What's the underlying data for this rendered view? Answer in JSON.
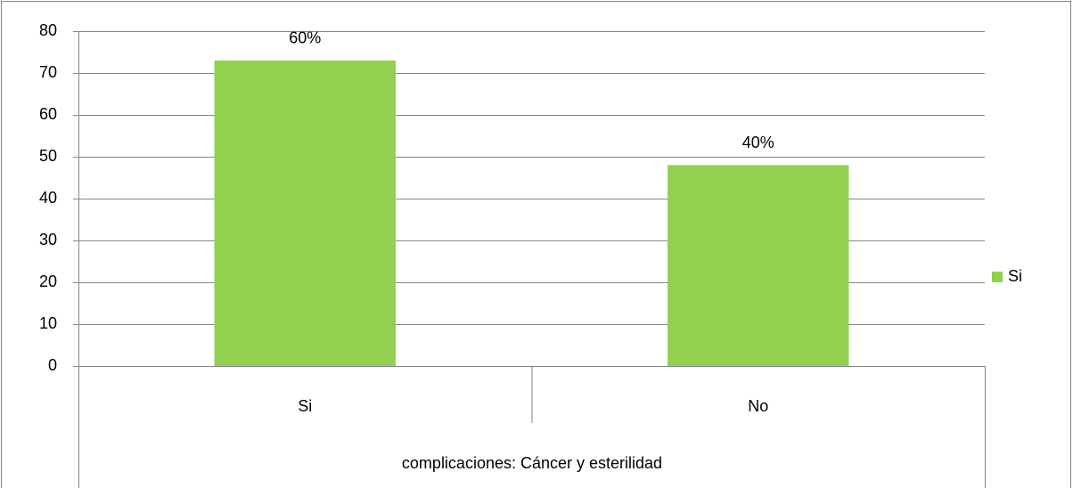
{
  "chart_data": {
    "type": "bar",
    "categories": [
      "Si",
      "No"
    ],
    "series": [
      {
        "name": "Si",
        "color": "#92d050",
        "values": [
          73,
          48
        ]
      }
    ],
    "annotations": [
      "60%",
      "40%"
    ],
    "xlabel": "complicaciones: Cáncer y esterilidad",
    "ylim": [
      0,
      80
    ],
    "yticks": [
      0,
      10,
      20,
      30,
      40,
      50,
      60,
      70,
      80
    ],
    "grid": true,
    "legend": "right"
  }
}
